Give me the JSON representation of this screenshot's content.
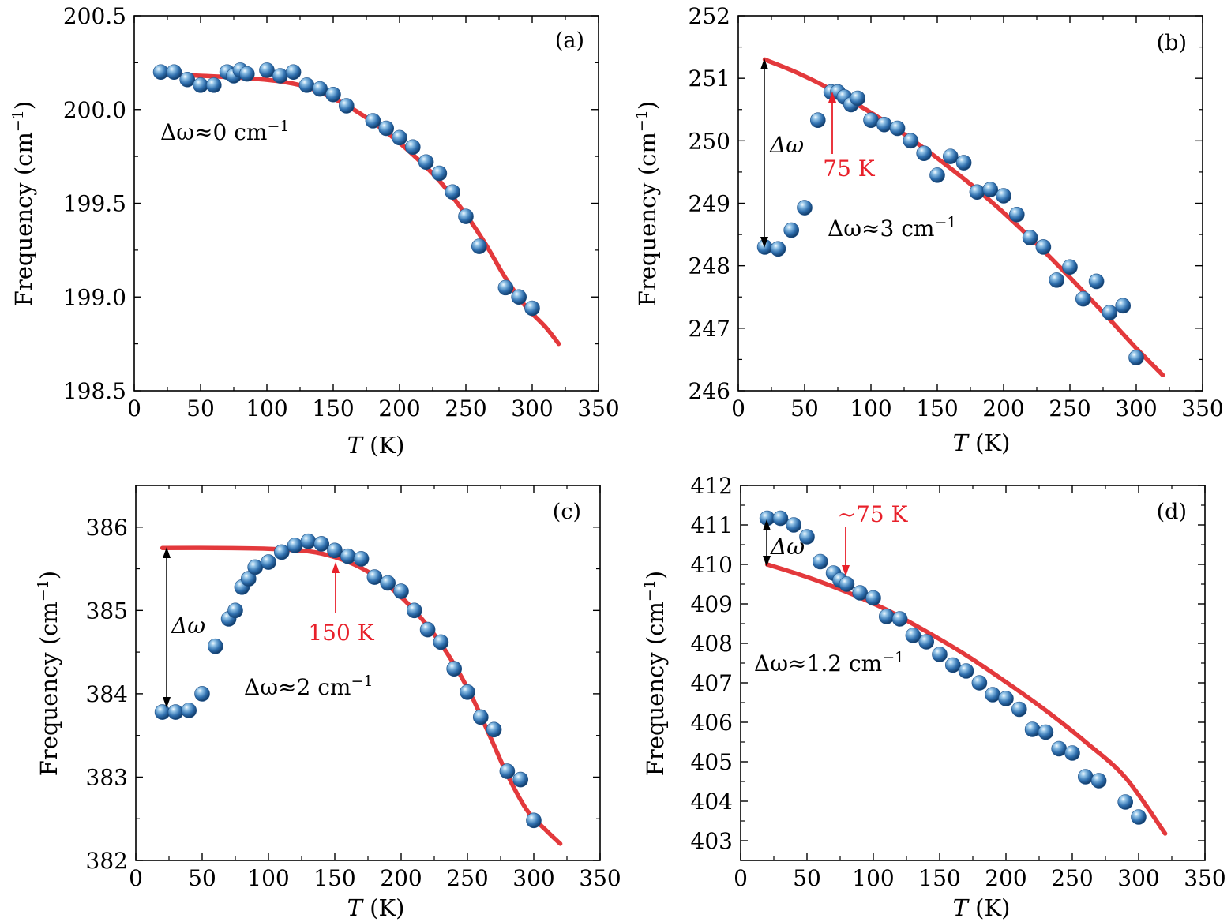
{
  "colors": {
    "fit": "#e3393c",
    "marker": "#2f6fae",
    "marker_highlight": "#cfe6f7",
    "arrow_red": "#e8202a",
    "arrow_black": "#000000"
  },
  "chart_data": [
    {
      "type": "scatter",
      "panel": "(a)",
      "xlabel_var": "T",
      "xlabel_unit": "(K)",
      "ylabel_main": "Frequency",
      "ylabel_unit": "(cm",
      "ylabel_sup": "−1",
      "ylabel_close": ")",
      "xlim": [
        0,
        350
      ],
      "ylim": [
        198.5,
        200.5
      ],
      "xticks": [
        0,
        50,
        100,
        150,
        200,
        250,
        300,
        350
      ],
      "xtick_labels": [
        "0",
        "50",
        "100",
        "150",
        "200",
        "250",
        "300",
        "350"
      ],
      "yticks": [
        198.5,
        199.0,
        199.5,
        200.0,
        200.5
      ],
      "ytick_labels": [
        "198.5",
        "199.0",
        "199.5",
        "200.0",
        "200.5"
      ],
      "yminor": [
        198.75,
        199.25,
        199.75,
        200.25
      ],
      "points": [
        [
          20,
          200.2
        ],
        [
          30,
          200.2
        ],
        [
          40,
          200.16
        ],
        [
          50,
          200.13
        ],
        [
          60,
          200.13
        ],
        [
          70,
          200.2
        ],
        [
          75,
          200.18
        ],
        [
          80,
          200.21
        ],
        [
          85,
          200.19
        ],
        [
          100,
          200.21
        ],
        [
          110,
          200.18
        ],
        [
          120,
          200.2
        ],
        [
          130,
          200.13
        ],
        [
          140,
          200.11
        ],
        [
          150,
          200.08
        ],
        [
          160,
          200.02
        ],
        [
          180,
          199.94
        ],
        [
          190,
          199.9
        ],
        [
          200,
          199.85
        ],
        [
          210,
          199.8
        ],
        [
          220,
          199.72
        ],
        [
          230,
          199.66
        ],
        [
          240,
          199.56
        ],
        [
          250,
          199.43
        ],
        [
          260,
          199.27
        ],
        [
          280,
          199.05
        ],
        [
          290,
          199.0
        ],
        [
          300,
          198.94
        ]
      ],
      "fit": [
        [
          20,
          200.19
        ],
        [
          50,
          200.18
        ],
        [
          80,
          200.17
        ],
        [
          110,
          200.15
        ],
        [
          130,
          200.12
        ],
        [
          150,
          200.06
        ],
        [
          170,
          199.98
        ],
        [
          190,
          199.88
        ],
        [
          210,
          199.76
        ],
        [
          230,
          199.62
        ],
        [
          250,
          199.44
        ],
        [
          265,
          199.28
        ],
        [
          280,
          199.1
        ],
        [
          295,
          198.95
        ],
        [
          310,
          198.84
        ],
        [
          320,
          198.75
        ]
      ],
      "annotations": {
        "dw_text": "Δω≈0 cm",
        "dw_sup": "−1"
      }
    },
    {
      "type": "scatter",
      "panel": "(b)",
      "xlabel_var": "T",
      "xlabel_unit": "(K)",
      "ylabel_main": "Frequency",
      "ylabel_unit": "(cm",
      "ylabel_sup": "−1",
      "ylabel_close": ")",
      "xlim": [
        0,
        350
      ],
      "ylim": [
        246,
        252
      ],
      "xticks": [
        0,
        50,
        100,
        150,
        200,
        250,
        300,
        350
      ],
      "xtick_labels": [
        "0",
        "50",
        "100",
        "150",
        "200",
        "250",
        "300",
        "350"
      ],
      "yticks": [
        246,
        247,
        248,
        249,
        250,
        251,
        252
      ],
      "ytick_labels": [
        "246",
        "247",
        "248",
        "249",
        "250",
        "251",
        "252"
      ],
      "yminor": [
        246.5,
        247.5,
        248.5,
        249.5,
        250.5,
        251.5
      ],
      "points": [
        [
          20,
          248.3
        ],
        [
          30,
          248.27
        ],
        [
          40,
          248.57
        ],
        [
          50,
          248.93
        ],
        [
          60,
          250.33
        ],
        [
          70,
          250.78
        ],
        [
          75,
          250.78
        ],
        [
          80,
          250.7
        ],
        [
          85,
          250.58
        ],
        [
          90,
          250.68
        ],
        [
          100,
          250.33
        ],
        [
          110,
          250.26
        ],
        [
          120,
          250.2
        ],
        [
          130,
          250.0
        ],
        [
          140,
          249.8
        ],
        [
          150,
          249.45
        ],
        [
          160,
          249.75
        ],
        [
          170,
          249.65
        ],
        [
          180,
          249.18
        ],
        [
          190,
          249.22
        ],
        [
          200,
          249.12
        ],
        [
          210,
          248.82
        ],
        [
          220,
          248.45
        ],
        [
          230,
          248.3
        ],
        [
          240,
          247.77
        ],
        [
          250,
          247.98
        ],
        [
          260,
          247.47
        ],
        [
          270,
          247.75
        ],
        [
          280,
          247.25
        ],
        [
          290,
          247.36
        ],
        [
          300,
          246.53
        ]
      ],
      "fit": [
        [
          20,
          251.3
        ],
        [
          40,
          251.13
        ],
        [
          60,
          250.93
        ],
        [
          80,
          250.7
        ],
        [
          100,
          250.45
        ],
        [
          120,
          250.18
        ],
        [
          140,
          249.88
        ],
        [
          160,
          249.56
        ],
        [
          180,
          249.22
        ],
        [
          200,
          248.85
        ],
        [
          220,
          248.45
        ],
        [
          240,
          248.03
        ],
        [
          260,
          247.59
        ],
        [
          280,
          247.14
        ],
        [
          300,
          246.68
        ],
        [
          320,
          246.25
        ]
      ],
      "annotations": {
        "dw_text": "Δω≈3 cm",
        "dw_sup": "−1",
        "dw_arrow_label": "Δω",
        "arrow_label": "75 K",
        "arrow_x": 75
      }
    },
    {
      "type": "scatter",
      "panel": "(c)",
      "xlabel_var": "T",
      "xlabel_unit": "(K)",
      "ylabel_main": "Frequency",
      "ylabel_unit": "(cm",
      "ylabel_sup": "−1",
      "ylabel_close": ")",
      "xlim": [
        0,
        350
      ],
      "ylim": [
        382,
        386.5
      ],
      "xticks": [
        0,
        50,
        100,
        150,
        200,
        250,
        300,
        350
      ],
      "xtick_labels": [
        "0",
        "50",
        "100",
        "150",
        "200",
        "250",
        "300",
        "350"
      ],
      "yticks": [
        382,
        383,
        384,
        385,
        386
      ],
      "ytick_labels": [
        "382",
        "383",
        "384",
        "385",
        "386"
      ],
      "yminor": [
        382.5,
        383.5,
        384.5,
        385.5
      ],
      "points": [
        [
          20,
          383.78
        ],
        [
          30,
          383.78
        ],
        [
          40,
          383.8
        ],
        [
          50,
          384.0
        ],
        [
          60,
          384.57
        ],
        [
          70,
          384.9
        ],
        [
          75,
          385.0
        ],
        [
          80,
          385.28
        ],
        [
          85,
          385.38
        ],
        [
          90,
          385.52
        ],
        [
          100,
          385.58
        ],
        [
          110,
          385.7
        ],
        [
          120,
          385.78
        ],
        [
          130,
          385.83
        ],
        [
          140,
          385.8
        ],
        [
          150,
          385.72
        ],
        [
          160,
          385.65
        ],
        [
          170,
          385.62
        ],
        [
          180,
          385.4
        ],
        [
          190,
          385.33
        ],
        [
          200,
          385.23
        ],
        [
          210,
          385.0
        ],
        [
          220,
          384.77
        ],
        [
          230,
          384.62
        ],
        [
          240,
          384.3
        ],
        [
          250,
          384.02
        ],
        [
          260,
          383.72
        ],
        [
          270,
          383.57
        ],
        [
          280,
          383.07
        ],
        [
          290,
          382.97
        ],
        [
          300,
          382.48
        ]
      ],
      "fit": [
        [
          20,
          385.75
        ],
        [
          60,
          385.75
        ],
        [
          100,
          385.74
        ],
        [
          130,
          385.71
        ],
        [
          150,
          385.64
        ],
        [
          170,
          385.51
        ],
        [
          190,
          385.3
        ],
        [
          210,
          385.0
        ],
        [
          230,
          384.6
        ],
        [
          250,
          384.07
        ],
        [
          265,
          383.56
        ],
        [
          280,
          383.03
        ],
        [
          295,
          382.6
        ],
        [
          310,
          382.35
        ],
        [
          320,
          382.2
        ]
      ],
      "annotations": {
        "dw_text": "Δω≈2 cm",
        "dw_sup": "−1",
        "dw_arrow_label": "Δω",
        "arrow_label": "150 K",
        "arrow_x": 150
      }
    },
    {
      "type": "scatter",
      "panel": "(d)",
      "xlabel_var": "T",
      "xlabel_unit": "(K)",
      "ylabel_main": "Frequency",
      "ylabel_unit": "(cm",
      "ylabel_sup": "−1",
      "ylabel_close": ")",
      "xlim": [
        0,
        350
      ],
      "ylim": [
        402.5,
        412
      ],
      "xticks": [
        0,
        50,
        100,
        150,
        200,
        250,
        300,
        350
      ],
      "xtick_labels": [
        "0",
        "50",
        "100",
        "150",
        "200",
        "250",
        "300",
        "350"
      ],
      "yticks": [
        403,
        404,
        405,
        406,
        407,
        408,
        409,
        410,
        411,
        412
      ],
      "ytick_labels": [
        "403",
        "404",
        "405",
        "406",
        "407",
        "408",
        "409",
        "410",
        "411",
        "412"
      ],
      "yminor": [
        403.5,
        404.5,
        405.5,
        406.5,
        407.5,
        408.5,
        409.5,
        410.5,
        411.5
      ],
      "points": [
        [
          20,
          411.17
        ],
        [
          30,
          411.17
        ],
        [
          40,
          411.0
        ],
        [
          50,
          410.7
        ],
        [
          60,
          410.07
        ],
        [
          70,
          409.78
        ],
        [
          75,
          409.6
        ],
        [
          80,
          409.5
        ],
        [
          90,
          409.28
        ],
        [
          100,
          409.15
        ],
        [
          110,
          408.68
        ],
        [
          120,
          408.62
        ],
        [
          130,
          408.2
        ],
        [
          140,
          408.04
        ],
        [
          150,
          407.72
        ],
        [
          160,
          407.45
        ],
        [
          170,
          407.3
        ],
        [
          180,
          407.0
        ],
        [
          190,
          406.7
        ],
        [
          200,
          406.6
        ],
        [
          210,
          406.33
        ],
        [
          220,
          405.82
        ],
        [
          230,
          405.75
        ],
        [
          240,
          405.33
        ],
        [
          250,
          405.22
        ],
        [
          260,
          404.62
        ],
        [
          270,
          404.52
        ],
        [
          290,
          403.98
        ],
        [
          300,
          403.6
        ]
      ],
      "fit": [
        [
          20,
          410.0
        ],
        [
          50,
          409.68
        ],
        [
          80,
          409.3
        ],
        [
          110,
          408.85
        ],
        [
          140,
          408.3
        ],
        [
          170,
          407.7
        ],
        [
          200,
          407.02
        ],
        [
          230,
          406.3
        ],
        [
          260,
          405.5
        ],
        [
          290,
          404.6
        ],
        [
          320,
          403.18
        ]
      ],
      "annotations": {
        "dw_text": "Δω≈1.2 cm",
        "dw_sup": "−1",
        "dw_arrow_label": "Δω",
        "arrow_label": "~75 K",
        "arrow_x": 77
      }
    }
  ]
}
